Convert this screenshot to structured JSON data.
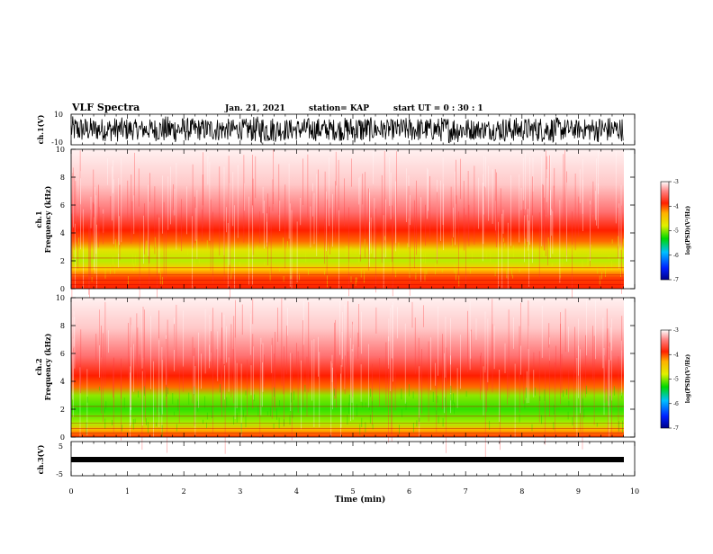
{
  "header": {
    "title": "VLF Spectra",
    "date": "Jan. 21, 2021",
    "station": "station= KAP",
    "start_ut": "start  UT =   0  : 30 : 1"
  },
  "chart_data": [
    {
      "type": "line",
      "panel": "ch1-waveform",
      "ylabel": "ch.1(V)",
      "ylim": [
        -10,
        10
      ],
      "y_ticks": [
        "10",
        "-10"
      ],
      "xlim": [
        0,
        9.8
      ],
      "color": "#000000"
    },
    {
      "type": "heatmap",
      "panel": "ch1-spectrogram",
      "ylabel": "ch.1\nFrequency (kHz)",
      "ylim": [
        0,
        10
      ],
      "y_ticks": [
        "0",
        "2",
        "4",
        "6",
        "8",
        "10"
      ],
      "colorbar": {
        "label": "log(PSD)(V²/Hz)",
        "range": [
          -7,
          -3
        ],
        "ticks": [
          "-3",
          "-4",
          "-5",
          "-6",
          "-7"
        ]
      }
    },
    {
      "type": "heatmap",
      "panel": "ch2-spectrogram",
      "ylabel": "ch.2\nFrequency (kHz)",
      "ylim": [
        0,
        10
      ],
      "y_ticks": [
        "0",
        "2",
        "4",
        "6",
        "8",
        "10"
      ],
      "colorbar": {
        "label": "log(PSD)(V²/Hz)",
        "range": [
          -7,
          -3
        ],
        "ticks": [
          "-3",
          "-4",
          "-5",
          "-6",
          "-7"
        ]
      }
    },
    {
      "type": "line",
      "panel": "ch3-waveform",
      "ylabel": "ch.3(V)",
      "ylim": [
        -5,
        5
      ],
      "y_ticks": [
        "5",
        "-5"
      ],
      "xlim": [
        0,
        9.8
      ],
      "color": "#000000"
    }
  ],
  "x_axis": {
    "label": "Time (min)",
    "range": [
      0,
      10
    ],
    "ticks": [
      "0",
      "1",
      "2",
      "3",
      "4",
      "5",
      "6",
      "7",
      "8",
      "9",
      "10"
    ]
  }
}
